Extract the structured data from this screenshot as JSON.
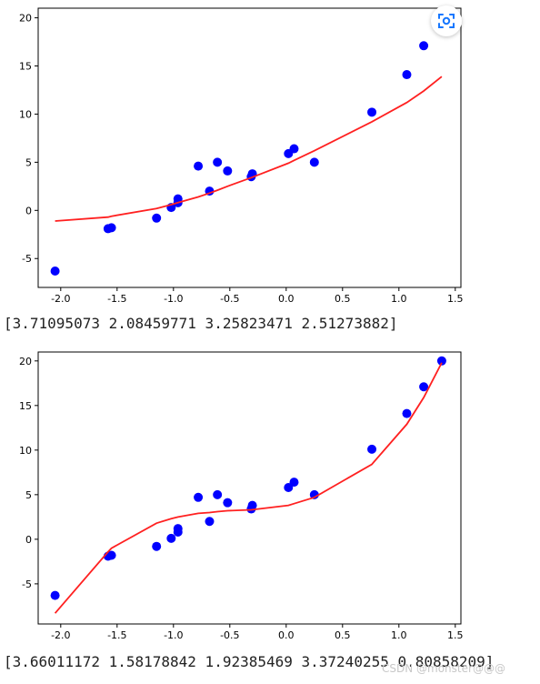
{
  "chart_data": [
    {
      "type": "scatter",
      "xlim": [
        -2.2,
        1.55
      ],
      "ylim": [
        -8,
        21
      ],
      "xticks": [
        -2.0,
        -1.5,
        -1.0,
        -0.5,
        0.0,
        0.5,
        1.0,
        1.5
      ],
      "yticks": [
        -5,
        0,
        5,
        10,
        15,
        20
      ],
      "xtick_labels": [
        "-2.0",
        "-1.5",
        "-1.0",
        "-0.5",
        "0.0",
        "0.5",
        "1.0",
        "1.5"
      ],
      "ytick_labels": [
        "-5",
        "0",
        "5",
        "10",
        "15",
        "20"
      ],
      "grid": false,
      "series": [
        {
          "kind": "scatter",
          "color": "#0000ff",
          "x": [
            -2.05,
            -1.58,
            -1.55,
            -1.15,
            -1.02,
            -0.96,
            -0.96,
            -0.78,
            -0.68,
            -0.61,
            -0.52,
            -0.31,
            -0.3,
            0.02,
            0.07,
            0.25,
            0.76,
            1.07,
            1.22,
            1.38
          ],
          "y": [
            -6.3,
            -1.9,
            -1.8,
            -0.8,
            0.3,
            0.8,
            1.2,
            4.6,
            2.0,
            5.0,
            4.1,
            3.5,
            3.8,
            5.9,
            6.4,
            5.0,
            10.2,
            14.1,
            17.1,
            20.0
          ]
        },
        {
          "kind": "line",
          "color": "#ff2020",
          "x": [
            -2.05,
            -1.58,
            -1.55,
            -1.15,
            -1.02,
            -0.96,
            -0.78,
            -0.68,
            -0.61,
            -0.52,
            -0.31,
            0.02,
            0.07,
            0.25,
            0.76,
            1.07,
            1.22,
            1.38
          ],
          "y": [
            -1.1,
            -0.7,
            -0.6,
            0.2,
            0.6,
            0.8,
            1.4,
            1.8,
            2.1,
            2.5,
            3.4,
            4.9,
            5.2,
            6.2,
            9.2,
            11.2,
            12.4,
            13.9
          ]
        }
      ]
    },
    {
      "type": "scatter",
      "xlim": [
        -2.2,
        1.55
      ],
      "ylim": [
        -9.5,
        21
      ],
      "xticks": [
        -2.0,
        -1.5,
        -1.0,
        -0.5,
        0.0,
        0.5,
        1.0,
        1.5
      ],
      "yticks": [
        -5,
        0,
        5,
        10,
        15,
        20
      ],
      "xtick_labels": [
        "-2.0",
        "-1.5",
        "-1.0",
        "-0.5",
        "0.0",
        "0.5",
        "1.0",
        "1.5"
      ],
      "ytick_labels": [
        "-5",
        "0",
        "5",
        "10",
        "15",
        "20"
      ],
      "grid": false,
      "series": [
        {
          "kind": "scatter",
          "color": "#0000ff",
          "x": [
            -2.05,
            -1.58,
            -1.55,
            -1.15,
            -1.02,
            -0.96,
            -0.96,
            -0.78,
            -0.68,
            -0.61,
            -0.52,
            -0.31,
            -0.3,
            0.02,
            0.07,
            0.25,
            0.76,
            1.07,
            1.22,
            1.38
          ],
          "y": [
            -6.3,
            -1.9,
            -1.8,
            -0.8,
            0.1,
            0.8,
            1.2,
            4.7,
            2.0,
            5.0,
            4.1,
            3.4,
            3.8,
            5.8,
            6.4,
            5.0,
            10.1,
            14.1,
            17.1,
            20.0
          ]
        },
        {
          "kind": "line",
          "color": "#ff2020",
          "x": [
            -2.05,
            -1.58,
            -1.55,
            -1.15,
            -1.02,
            -0.96,
            -0.78,
            -0.68,
            -0.61,
            -0.52,
            -0.31,
            0.02,
            0.07,
            0.25,
            0.76,
            1.07,
            1.22,
            1.38
          ],
          "y": [
            -8.3,
            -1.4,
            -1.0,
            1.8,
            2.3,
            2.5,
            2.9,
            3.0,
            3.1,
            3.2,
            3.3,
            3.8,
            4.0,
            4.7,
            8.4,
            12.9,
            15.9,
            19.8
          ]
        }
      ]
    }
  ],
  "output": {
    "coef1": "[3.71095073 2.08459771 3.25823471 2.51273882]",
    "coef2": "[3.66011172 1.58178842 1.92385469 3.37240255 0.80858209]"
  },
  "watermark": "CSDN @monster@@@",
  "icons": {
    "scan": "scan-icon"
  },
  "colors": {
    "scan_accent": "#1677ff"
  }
}
